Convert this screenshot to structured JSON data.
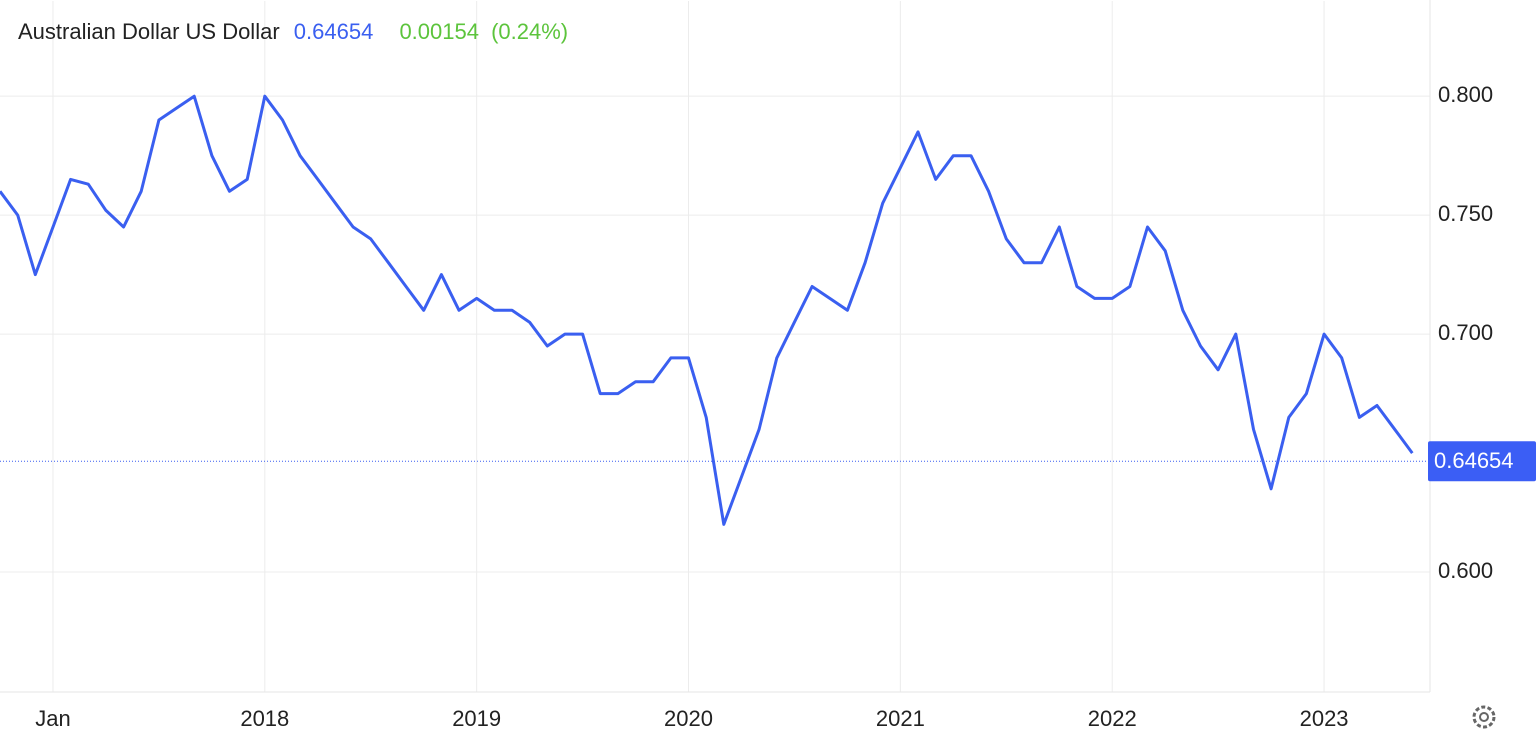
{
  "chart_data": {
    "type": "line",
    "title": "Australian Dollar US Dollar",
    "last_value": 0.64654,
    "change": 0.00154,
    "change_pct": "(0.24%)",
    "color": "#3a5ff0",
    "x": [
      "2016-10",
      "2016-11",
      "2016-12",
      "2017-01",
      "2017-02",
      "2017-03",
      "2017-04",
      "2017-05",
      "2017-06",
      "2017-07",
      "2017-08",
      "2017-09",
      "2017-10",
      "2017-11",
      "2017-12",
      "2018-01",
      "2018-02",
      "2018-03",
      "2018-04",
      "2018-05",
      "2018-06",
      "2018-07",
      "2018-08",
      "2018-09",
      "2018-10",
      "2018-11",
      "2018-12",
      "2019-01",
      "2019-02",
      "2019-03",
      "2019-04",
      "2019-05",
      "2019-06",
      "2019-07",
      "2019-08",
      "2019-09",
      "2019-10",
      "2019-11",
      "2019-12",
      "2020-01",
      "2020-02",
      "2020-03",
      "2020-04",
      "2020-05",
      "2020-06",
      "2020-07",
      "2020-08",
      "2020-09",
      "2020-10",
      "2020-11",
      "2020-12",
      "2021-01",
      "2021-02",
      "2021-03",
      "2021-04",
      "2021-05",
      "2021-06",
      "2021-07",
      "2021-08",
      "2021-09",
      "2021-10",
      "2021-11",
      "2021-12",
      "2022-01",
      "2022-02",
      "2022-03",
      "2022-04",
      "2022-05",
      "2022-06",
      "2022-07",
      "2022-08",
      "2022-09",
      "2022-10",
      "2022-11",
      "2022-12",
      "2023-01",
      "2023-02",
      "2023-03",
      "2023-04",
      "2023-05",
      "2023-06"
    ],
    "values": [
      0.76,
      0.75,
      0.725,
      0.745,
      0.765,
      0.763,
      0.752,
      0.745,
      0.76,
      0.79,
      0.795,
      0.8,
      0.775,
      0.76,
      0.765,
      0.8,
      0.79,
      0.775,
      0.765,
      0.755,
      0.745,
      0.74,
      0.73,
      0.72,
      0.71,
      0.725,
      0.71,
      0.715,
      0.71,
      0.71,
      0.705,
      0.695,
      0.7,
      0.7,
      0.675,
      0.675,
      0.68,
      0.68,
      0.69,
      0.69,
      0.665,
      0.62,
      0.64,
      0.66,
      0.69,
      0.705,
      0.72,
      0.715,
      0.71,
      0.73,
      0.755,
      0.77,
      0.785,
      0.765,
      0.775,
      0.775,
      0.76,
      0.74,
      0.73,
      0.73,
      0.745,
      0.72,
      0.715,
      0.715,
      0.72,
      0.745,
      0.735,
      0.71,
      0.695,
      0.685,
      0.7,
      0.66,
      0.635,
      0.665,
      0.675,
      0.7,
      0.69,
      0.665,
      0.67,
      0.66,
      0.65
    ],
    "xlim": [
      "2016-10",
      "2023-07"
    ],
    "xticks": [
      {
        "value": "2017-01",
        "label": "Jan"
      },
      {
        "value": "2018-01",
        "label": "2018"
      },
      {
        "value": "2019-01",
        "label": "2019"
      },
      {
        "value": "2020-01",
        "label": "2020"
      },
      {
        "value": "2021-01",
        "label": "2021"
      },
      {
        "value": "2022-01",
        "label": "2022"
      },
      {
        "value": "2023-01",
        "label": "2023"
      }
    ],
    "ylim": [
      0.55,
      0.84
    ],
    "yticks": [
      {
        "value": 0.6,
        "label": "0.600"
      },
      {
        "value": 0.7,
        "label": "0.700"
      },
      {
        "value": 0.75,
        "label": "0.750"
      },
      {
        "value": 0.8,
        "label": "0.800"
      }
    ],
    "grid": true
  }
}
